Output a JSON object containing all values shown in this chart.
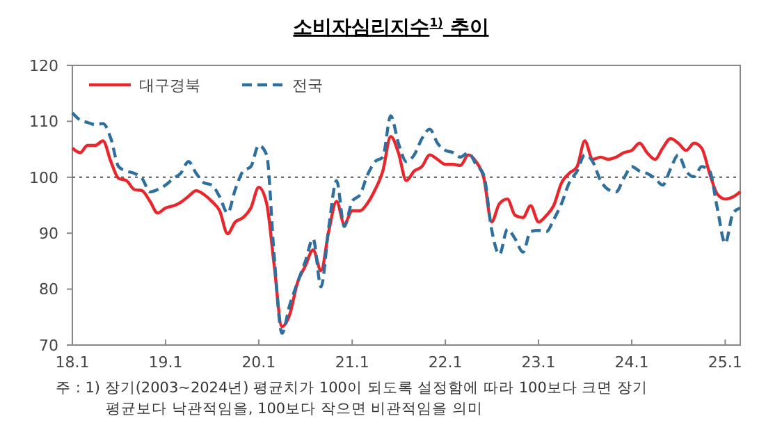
{
  "chart_data": {
    "type": "line",
    "title": "소비자심리지수$^{1)}$ 추이",
    "x": [
      "2018-01",
      "2018-02",
      "2018-03",
      "2018-04",
      "2018-05",
      "2018-06",
      "2018-07",
      "2018-08",
      "2018-09",
      "2018-10",
      "2018-11",
      "2018-12",
      "2019-01",
      "2019-02",
      "2019-03",
      "2019-04",
      "2019-05",
      "2019-06",
      "2019-07",
      "2019-08",
      "2019-09",
      "2019-10",
      "2019-11",
      "2019-12",
      "2020-01",
      "2020-02",
      "2020-03",
      "2020-04",
      "2020-05",
      "2020-06",
      "2020-07",
      "2020-08",
      "2020-09",
      "2020-10",
      "2020-11",
      "2020-12",
      "2021-01",
      "2021-02",
      "2021-03",
      "2021-04",
      "2021-05",
      "2021-06",
      "2021-07",
      "2021-08",
      "2021-09",
      "2021-10",
      "2021-11",
      "2021-12",
      "2022-01",
      "2022-02",
      "2022-03",
      "2022-04",
      "2022-05",
      "2022-06",
      "2022-07",
      "2022-08",
      "2022-09",
      "2022-10",
      "2022-11",
      "2022-12",
      "2023-01",
      "2023-02",
      "2023-03",
      "2023-04",
      "2023-05",
      "2023-06",
      "2023-07",
      "2023-08",
      "2023-09",
      "2023-10",
      "2023-11",
      "2023-12",
      "2024-01",
      "2024-02",
      "2024-03",
      "2024-04",
      "2024-05",
      "2024-06",
      "2024-07",
      "2024-08",
      "2024-09",
      "2024-10",
      "2024-11",
      "2024-12",
      "2025-01",
      "2025-02",
      "2025-03"
    ],
    "series": [
      {
        "name": "대구경북",
        "color": "#e8262b",
        "line_style": "solid",
        "values": [
          105.2,
          104.4,
          105.7,
          105.7,
          106.5,
          102.8,
          99.8,
          99.4,
          97.8,
          97.6,
          95.7,
          93.6,
          94.5,
          94.9,
          95.5,
          96.6,
          97.6,
          96.9,
          95.7,
          94.0,
          89.9,
          92.0,
          92.8,
          94.5,
          98.2,
          95.3,
          84.5,
          73.3,
          75.4,
          81.2,
          84.1,
          87.0,
          83.3,
          90.3,
          95.7,
          91.6,
          94.0,
          94.0,
          95.3,
          97.8,
          101.1,
          107.3,
          104.4,
          99.4,
          101.1,
          101.9,
          104.0,
          103.2,
          102.3,
          102.3,
          102.1,
          104.0,
          102.8,
          99.8,
          92.0,
          95.3,
          96.1,
          93.2,
          92.8,
          94.9,
          92.0,
          93.2,
          94.9,
          99.0,
          100.7,
          101.9,
          106.5,
          103.2,
          103.6,
          103.2,
          103.6,
          104.4,
          104.8,
          106.1,
          104.4,
          103.2,
          105.2,
          106.9,
          106.1,
          104.8,
          106.1,
          105.2,
          100.7,
          97.0,
          96.1,
          96.5,
          97.4
        ]
      },
      {
        "name": "전국",
        "color": "#2e6f9e",
        "line_style": "dashed",
        "values": [
          111.5,
          110.2,
          109.8,
          109.4,
          109.6,
          106.9,
          101.9,
          101.1,
          100.7,
          99.8,
          97.4,
          97.8,
          98.6,
          99.8,
          100.7,
          102.8,
          100.7,
          99.0,
          98.6,
          96.5,
          93.6,
          97.8,
          101.1,
          101.9,
          105.7,
          104.0,
          86.2,
          72.1,
          77.1,
          81.2,
          84.9,
          89.0,
          80.4,
          90.9,
          99.4,
          91.2,
          95.7,
          96.9,
          100.3,
          102.8,
          103.6,
          111.0,
          106.1,
          102.8,
          104.0,
          106.9,
          108.6,
          106.1,
          104.8,
          104.4,
          103.6,
          104.4,
          102.3,
          100.3,
          90.7,
          86.2,
          90.7,
          89.0,
          86.6,
          90.3,
          90.5,
          90.3,
          92.4,
          95.3,
          99.0,
          101.1,
          104.0,
          102.8,
          99.4,
          97.8,
          97.4,
          99.8,
          101.9,
          101.1,
          100.7,
          99.8,
          98.6,
          101.5,
          104.0,
          101.1,
          100.1,
          101.9,
          101.1,
          94.5,
          88.2,
          93.6,
          94.5
        ]
      }
    ],
    "xlim": [
      "2018-01",
      "2025-03"
    ],
    "xticks": [
      {
        "value": "2018-01",
        "label": "18.1"
      },
      {
        "value": "2019-01",
        "label": "19.1"
      },
      {
        "value": "2020-01",
        "label": "20.1"
      },
      {
        "value": "2021-01",
        "label": "21.1"
      },
      {
        "value": "2022-01",
        "label": "22.1"
      },
      {
        "value": "2023-01",
        "label": "23.1"
      },
      {
        "value": "2024-01",
        "label": "24.1"
      },
      {
        "value": "2025-01",
        "label": "25.1"
      }
    ],
    "ylim": [
      70,
      120
    ],
    "yticks": [
      70,
      80,
      90,
      100,
      110,
      120
    ],
    "ref_lines": [
      {
        "axis": "y",
        "value": 100,
        "color": "#555555",
        "line_style": "dotted"
      }
    ],
    "grid": false,
    "legend": "top left",
    "marker": "none",
    "annotations": [
      "주 : 1) 장기(2003~2024년) 평균치가 100이 되도록 설정함에 따라 100보다 크면 장기 평균보다 낙관적임을, 100보다 작으면 비관적임을 의미"
    ]
  }
}
